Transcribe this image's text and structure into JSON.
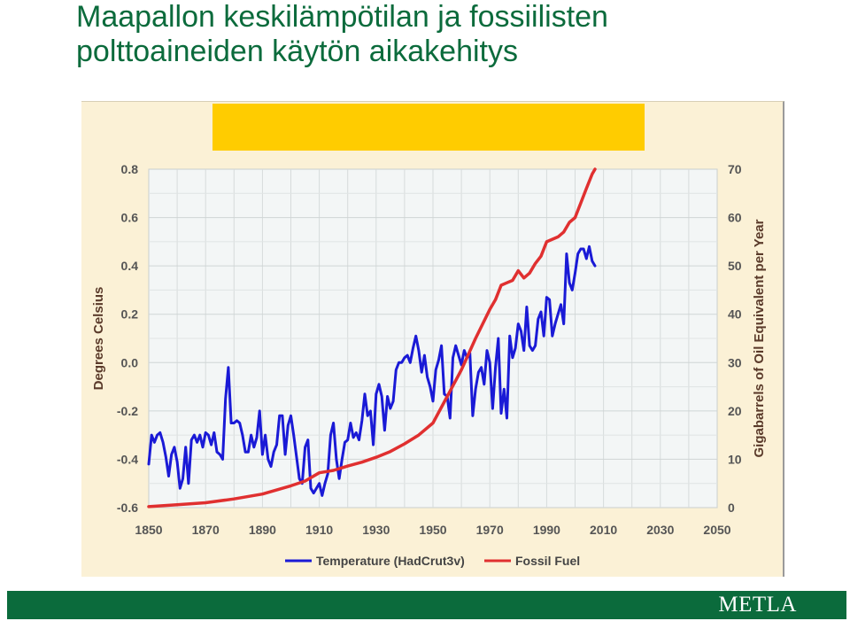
{
  "page": {
    "title_line1": "Maapallon keskilämpötilan ja fossiilisten",
    "title_line2": "polttoaineiden käytön aikakehitys",
    "logo": "METLA"
  },
  "colors": {
    "title": "#0b6b3c",
    "footer": "#0b6b3c",
    "highlight": "#ffcc00",
    "plot_bg": "#f3f6f6",
    "temperature": "#1a1ad6",
    "fossil": "#e03030",
    "tick_text": "#555555",
    "axis_label": "#5a3a2a"
  },
  "chart_data": {
    "type": "line",
    "ylabel": "Degrees Celsius",
    "y2label": "Gigabarrels of Oil Equivalent per Year",
    "xlim": [
      1850,
      2050
    ],
    "ylim": [
      -0.6,
      0.8
    ],
    "y2lim": [
      0,
      70
    ],
    "xticks": [
      1850,
      1870,
      1890,
      1910,
      1930,
      1950,
      1970,
      1990,
      2010,
      2030,
      2050
    ],
    "yticks": [
      "-0.6",
      "-0.4",
      "-0.2",
      "0.0",
      "0.2",
      "0.4",
      "0.6",
      "0.8"
    ],
    "y2ticks": [
      "0",
      "10",
      "20",
      "30",
      "40",
      "50",
      "60",
      "70"
    ],
    "legend_position": "bottom",
    "grid": true,
    "series": [
      {
        "name": "Temperature (HadCrut3v)",
        "axis": "left",
        "color": "#1a1ad6",
        "x": [
          1850,
          1851,
          1852,
          1853,
          1854,
          1855,
          1856,
          1857,
          1858,
          1859,
          1860,
          1861,
          1862,
          1863,
          1864,
          1865,
          1866,
          1867,
          1868,
          1869,
          1870,
          1871,
          1872,
          1873,
          1874,
          1875,
          1876,
          1877,
          1878,
          1879,
          1880,
          1881,
          1882,
          1883,
          1884,
          1885,
          1886,
          1887,
          1888,
          1889,
          1890,
          1891,
          1892,
          1893,
          1894,
          1895,
          1896,
          1897,
          1898,
          1899,
          1900,
          1901,
          1902,
          1903,
          1904,
          1905,
          1906,
          1907,
          1908,
          1909,
          1910,
          1911,
          1912,
          1913,
          1914,
          1915,
          1916,
          1917,
          1918,
          1919,
          1920,
          1921,
          1922,
          1923,
          1924,
          1925,
          1926,
          1927,
          1928,
          1929,
          1930,
          1931,
          1932,
          1933,
          1934,
          1935,
          1936,
          1937,
          1938,
          1939,
          1940,
          1941,
          1942,
          1943,
          1944,
          1945,
          1946,
          1947,
          1948,
          1949,
          1950,
          1951,
          1952,
          1953,
          1954,
          1955,
          1956,
          1957,
          1958,
          1959,
          1960,
          1961,
          1962,
          1963,
          1964,
          1965,
          1966,
          1967,
          1968,
          1969,
          1970,
          1971,
          1972,
          1973,
          1974,
          1975,
          1976,
          1977,
          1978,
          1979,
          1980,
          1981,
          1982,
          1983,
          1984,
          1985,
          1986,
          1987,
          1988,
          1989,
          1990,
          1991,
          1992,
          1993,
          1994,
          1995,
          1996,
          1997,
          1998,
          1999,
          2000,
          2001,
          2002,
          2003,
          2004,
          2005,
          2006,
          2007
        ],
        "values": [
          -0.42,
          -0.3,
          -0.33,
          -0.3,
          -0.29,
          -0.33,
          -0.39,
          -0.47,
          -0.38,
          -0.35,
          -0.41,
          -0.52,
          -0.48,
          -0.35,
          -0.5,
          -0.32,
          -0.3,
          -0.33,
          -0.3,
          -0.35,
          -0.29,
          -0.3,
          -0.34,
          -0.29,
          -0.37,
          -0.38,
          -0.4,
          -0.15,
          -0.02,
          -0.25,
          -0.25,
          -0.24,
          -0.25,
          -0.3,
          -0.37,
          -0.37,
          -0.3,
          -0.35,
          -0.31,
          -0.2,
          -0.38,
          -0.3,
          -0.4,
          -0.43,
          -0.37,
          -0.34,
          -0.22,
          -0.22,
          -0.38,
          -0.26,
          -0.22,
          -0.3,
          -0.39,
          -0.48,
          -0.5,
          -0.35,
          -0.32,
          -0.52,
          -0.54,
          -0.52,
          -0.5,
          -0.55,
          -0.5,
          -0.46,
          -0.3,
          -0.25,
          -0.4,
          -0.48,
          -0.4,
          -0.33,
          -0.32,
          -0.25,
          -0.31,
          -0.29,
          -0.32,
          -0.24,
          -0.13,
          -0.22,
          -0.2,
          -0.34,
          -0.13,
          -0.09,
          -0.14,
          -0.28,
          -0.14,
          -0.19,
          -0.16,
          -0.03,
          0.0,
          0.0,
          0.02,
          0.03,
          0.0,
          0.06,
          0.11,
          0.05,
          -0.04,
          0.03,
          -0.06,
          -0.1,
          -0.16,
          -0.03,
          0.01,
          0.07,
          -0.13,
          -0.14,
          -0.23,
          0.02,
          0.07,
          0.03,
          -0.01,
          0.05,
          0.02,
          0.04,
          -0.22,
          -0.11,
          -0.04,
          -0.02,
          -0.09,
          0.05,
          0.0,
          -0.19,
          -0.02,
          0.1,
          -0.21,
          -0.11,
          -0.23,
          0.11,
          0.02,
          0.06,
          0.16,
          0.13,
          0.05,
          0.23,
          0.07,
          0.05,
          0.07,
          0.18,
          0.21,
          0.11,
          0.27,
          0.26,
          0.11,
          0.16,
          0.2,
          0.24,
          0.16,
          0.45,
          0.33,
          0.3,
          0.37,
          0.45,
          0.47,
          0.47,
          0.43,
          0.48,
          0.42,
          0.4
        ]
      },
      {
        "name": "Fossil Fuel",
        "axis": "right",
        "color": "#e03030",
        "x": [
          1850,
          1860,
          1870,
          1880,
          1890,
          1900,
          1905,
          1910,
          1915,
          1920,
          1925,
          1930,
          1935,
          1940,
          1945,
          1950,
          1955,
          1960,
          1965,
          1970,
          1972,
          1974,
          1976,
          1978,
          1980,
          1982,
          1984,
          1986,
          1988,
          1990,
          1992,
          1994,
          1996,
          1998,
          2000,
          2002,
          2004,
          2006,
          2007
        ],
        "values": [
          0.2,
          0.6,
          1.0,
          1.8,
          2.8,
          4.5,
          5.5,
          7.2,
          7.7,
          8.6,
          9.4,
          10.4,
          11.6,
          13.2,
          15.0,
          17.5,
          23.0,
          28.5,
          35.0,
          41.0,
          43.0,
          46.0,
          46.5,
          47.0,
          49.0,
          47.5,
          48.5,
          50.5,
          52.0,
          55.0,
          55.5,
          56.0,
          57.0,
          59.0,
          60.0,
          63.0,
          66.0,
          69.0,
          70.0
        ]
      }
    ]
  }
}
